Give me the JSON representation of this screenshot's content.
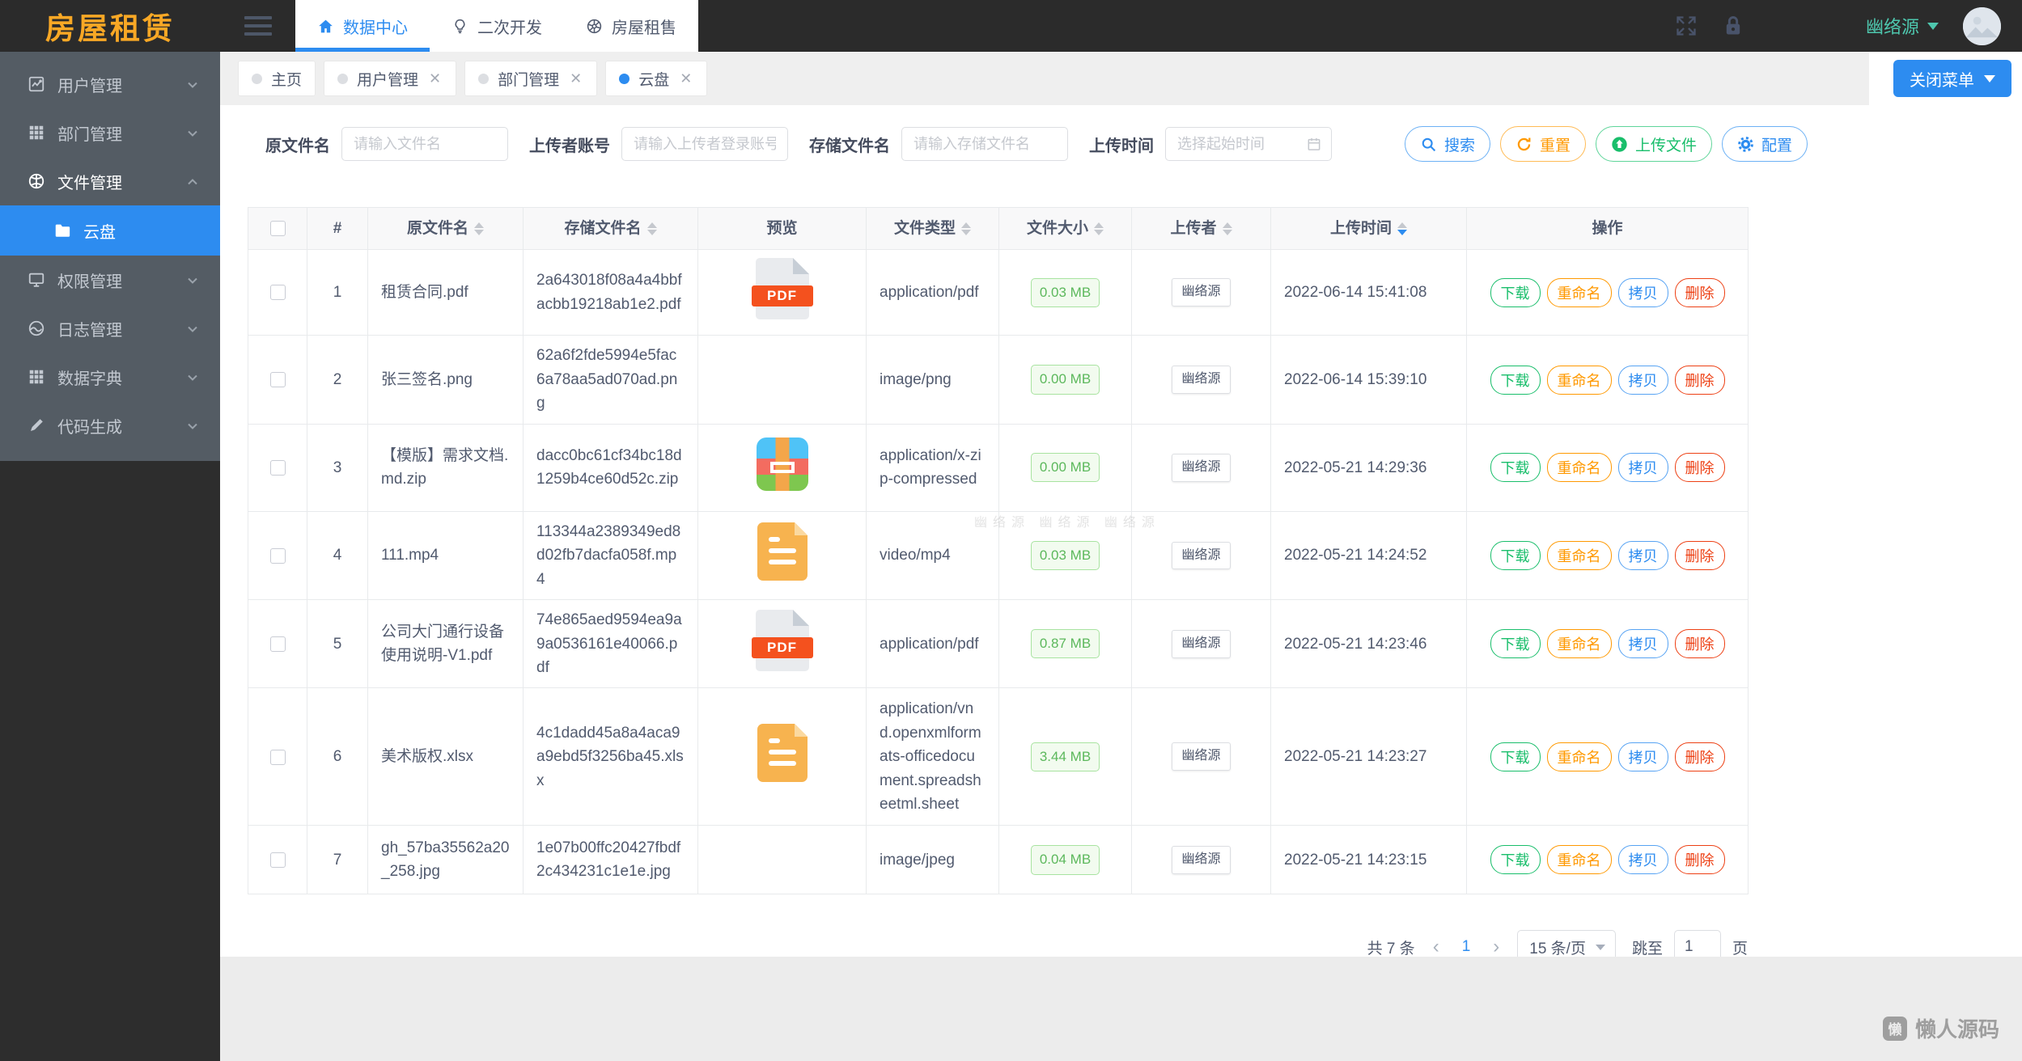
{
  "brand": {
    "logo": "房屋租赁"
  },
  "header": {
    "nav": [
      {
        "label": "数据中心",
        "icon": "home",
        "active": true
      },
      {
        "label": "二次开发",
        "icon": "bulb",
        "active": false
      },
      {
        "label": "房屋租售",
        "icon": "globe",
        "active": false
      }
    ],
    "user_name": "幽络源"
  },
  "sidebar": {
    "items": [
      {
        "id": "users",
        "label": "用户管理",
        "icon": "chart",
        "chevron": "down"
      },
      {
        "id": "departments",
        "label": "部门管理",
        "icon": "grid",
        "chevron": "down"
      },
      {
        "id": "files",
        "label": "文件管理",
        "icon": "basketball",
        "chevron": "up",
        "active": true
      },
      {
        "id": "cloud-disk",
        "label": "云盘",
        "icon": "folder",
        "submenu": true,
        "selected": true
      },
      {
        "id": "permissions",
        "label": "权限管理",
        "icon": "monitor",
        "chevron": "down"
      },
      {
        "id": "logs",
        "label": "日志管理",
        "icon": "pie",
        "chevron": "down"
      },
      {
        "id": "dictionary",
        "label": "数据字典",
        "icon": "grid",
        "chevron": "down"
      },
      {
        "id": "codegen",
        "label": "代码生成",
        "icon": "brush",
        "chevron": "down"
      }
    ]
  },
  "tabs": [
    {
      "label": "主页",
      "closable": false,
      "active": false
    },
    {
      "label": "用户管理",
      "closable": true,
      "active": false
    },
    {
      "label": "部门管理",
      "closable": true,
      "active": false
    },
    {
      "label": "云盘",
      "closable": true,
      "active": true
    }
  ],
  "close_menu_label": "关闭菜单",
  "filters": [
    {
      "id": "original-filename",
      "label": "原文件名",
      "placeholder": "请输入文件名"
    },
    {
      "id": "uploader-account",
      "label": "上传者账号",
      "placeholder": "请输入上传者登录账号"
    },
    {
      "id": "stored-filename",
      "label": "存储文件名",
      "placeholder": "请输入存储文件名"
    },
    {
      "id": "upload-time",
      "label": "上传时间",
      "placeholder": "选择起始时间",
      "icon": "calendar"
    }
  ],
  "toolbar": [
    {
      "id": "search",
      "label": "搜索",
      "icon": "search",
      "color": "blue"
    },
    {
      "id": "reset",
      "label": "重置",
      "icon": "refresh",
      "color": "orange"
    },
    {
      "id": "upload",
      "label": "上传文件",
      "icon": "upload",
      "color": "green"
    },
    {
      "id": "config",
      "label": "配置",
      "icon": "gear",
      "color": "blue"
    }
  ],
  "table": {
    "headers": [
      {
        "key": "select",
        "label": "",
        "type": "checkbox"
      },
      {
        "key": "idx",
        "label": "#"
      },
      {
        "key": "name",
        "label": "原文件名",
        "sortable": true
      },
      {
        "key": "stored",
        "label": "存储文件名",
        "sortable": true
      },
      {
        "key": "preview",
        "label": "预览"
      },
      {
        "key": "type",
        "label": "文件类型",
        "sortable": true
      },
      {
        "key": "size",
        "label": "文件大小",
        "sortable": true
      },
      {
        "key": "uploader",
        "label": "上传者",
        "sortable": true
      },
      {
        "key": "time",
        "label": "上传时间",
        "sortable": true,
        "sorted": "desc"
      },
      {
        "key": "actions",
        "label": "操作"
      }
    ],
    "actions": [
      {
        "label": "下载",
        "color": "green"
      },
      {
        "label": "重命名",
        "color": "orange"
      },
      {
        "label": "拷贝",
        "color": "blue"
      },
      {
        "label": "删除",
        "color": "red"
      }
    ],
    "rows": [
      {
        "idx": 1,
        "name": "租赁合同.pdf",
        "stored": "2a643018f08a4a4bbfacbb19218ab1e2.pdf",
        "preview": "pdf",
        "type": "application/pdf",
        "size": "0.03 MB",
        "uploader": "幽络源",
        "time": "2022-06-14 15:41:08"
      },
      {
        "idx": 2,
        "name": "张三签名.png",
        "stored": "62a6f2fde5994e5fac6a78aa5ad070ad.png",
        "preview": "none",
        "type": "image/png",
        "size": "0.00 MB",
        "uploader": "幽络源",
        "time": "2022-06-14 15:39:10"
      },
      {
        "idx": 3,
        "name": "【模版】需求文档.md.zip",
        "stored": "dacc0bc61cf34bc18d1259b4ce60d52c.zip",
        "preview": "zip",
        "type": "application/x-zip-compressed",
        "size": "0.00 MB",
        "uploader": "幽络源",
        "time": "2022-05-21 14:29:36"
      },
      {
        "idx": 4,
        "name": "111.mp4",
        "stored": "113344a2389349ed8d02fb7dacfa058f.mp4",
        "preview": "doc",
        "type": "video/mp4",
        "size": "0.03 MB",
        "uploader": "幽络源",
        "time": "2022-05-21 14:24:52"
      },
      {
        "idx": 5,
        "name": "公司大门通行设备使用说明-V1.pdf",
        "stored": "74e865aed9594ea9a9a0536161e40066.pdf",
        "preview": "pdf",
        "type": "application/pdf",
        "size": "0.87 MB",
        "uploader": "幽络源",
        "time": "2022-05-21 14:23:46"
      },
      {
        "idx": 6,
        "name": "美术版权.xlsx",
        "stored": "4c1dadd45a8a4aca9a9ebd5f3256ba45.xlsx",
        "preview": "doc",
        "type": "application/vnd.openxmlformats-officedocument.spreadsheetml.sheet",
        "size": "3.44 MB",
        "uploader": "幽络源",
        "time": "2022-05-21 14:23:27"
      },
      {
        "idx": 7,
        "name": "gh_57ba35562a20_258.jpg",
        "stored": "1e07b00ffc20427fbdf2c434231c1e1e.jpg",
        "preview": "none",
        "type": "image/jpeg",
        "size": "0.04 MB",
        "uploader": "幽络源",
        "time": "2022-05-21 14:23:15"
      }
    ]
  },
  "pagination": {
    "total": "共 7 条",
    "page": "1",
    "per_page": "15 条/页",
    "jump_label": "跳至",
    "jump_value": "1",
    "page_suffix": "页"
  },
  "content_watermark": "幽络源 幽络源 幽络源",
  "site_watermark": {
    "icon_glyph": "懒",
    "text": "懒人源码"
  },
  "colors": {
    "accent": "#2d8cf0",
    "success": "#19be6b",
    "warning": "#ff9900",
    "error": "#ed4014",
    "logo": "#f9a825",
    "user": "#4ec7ae",
    "sidebar": "#545c64",
    "header_dark": "#2b2b2b"
  }
}
